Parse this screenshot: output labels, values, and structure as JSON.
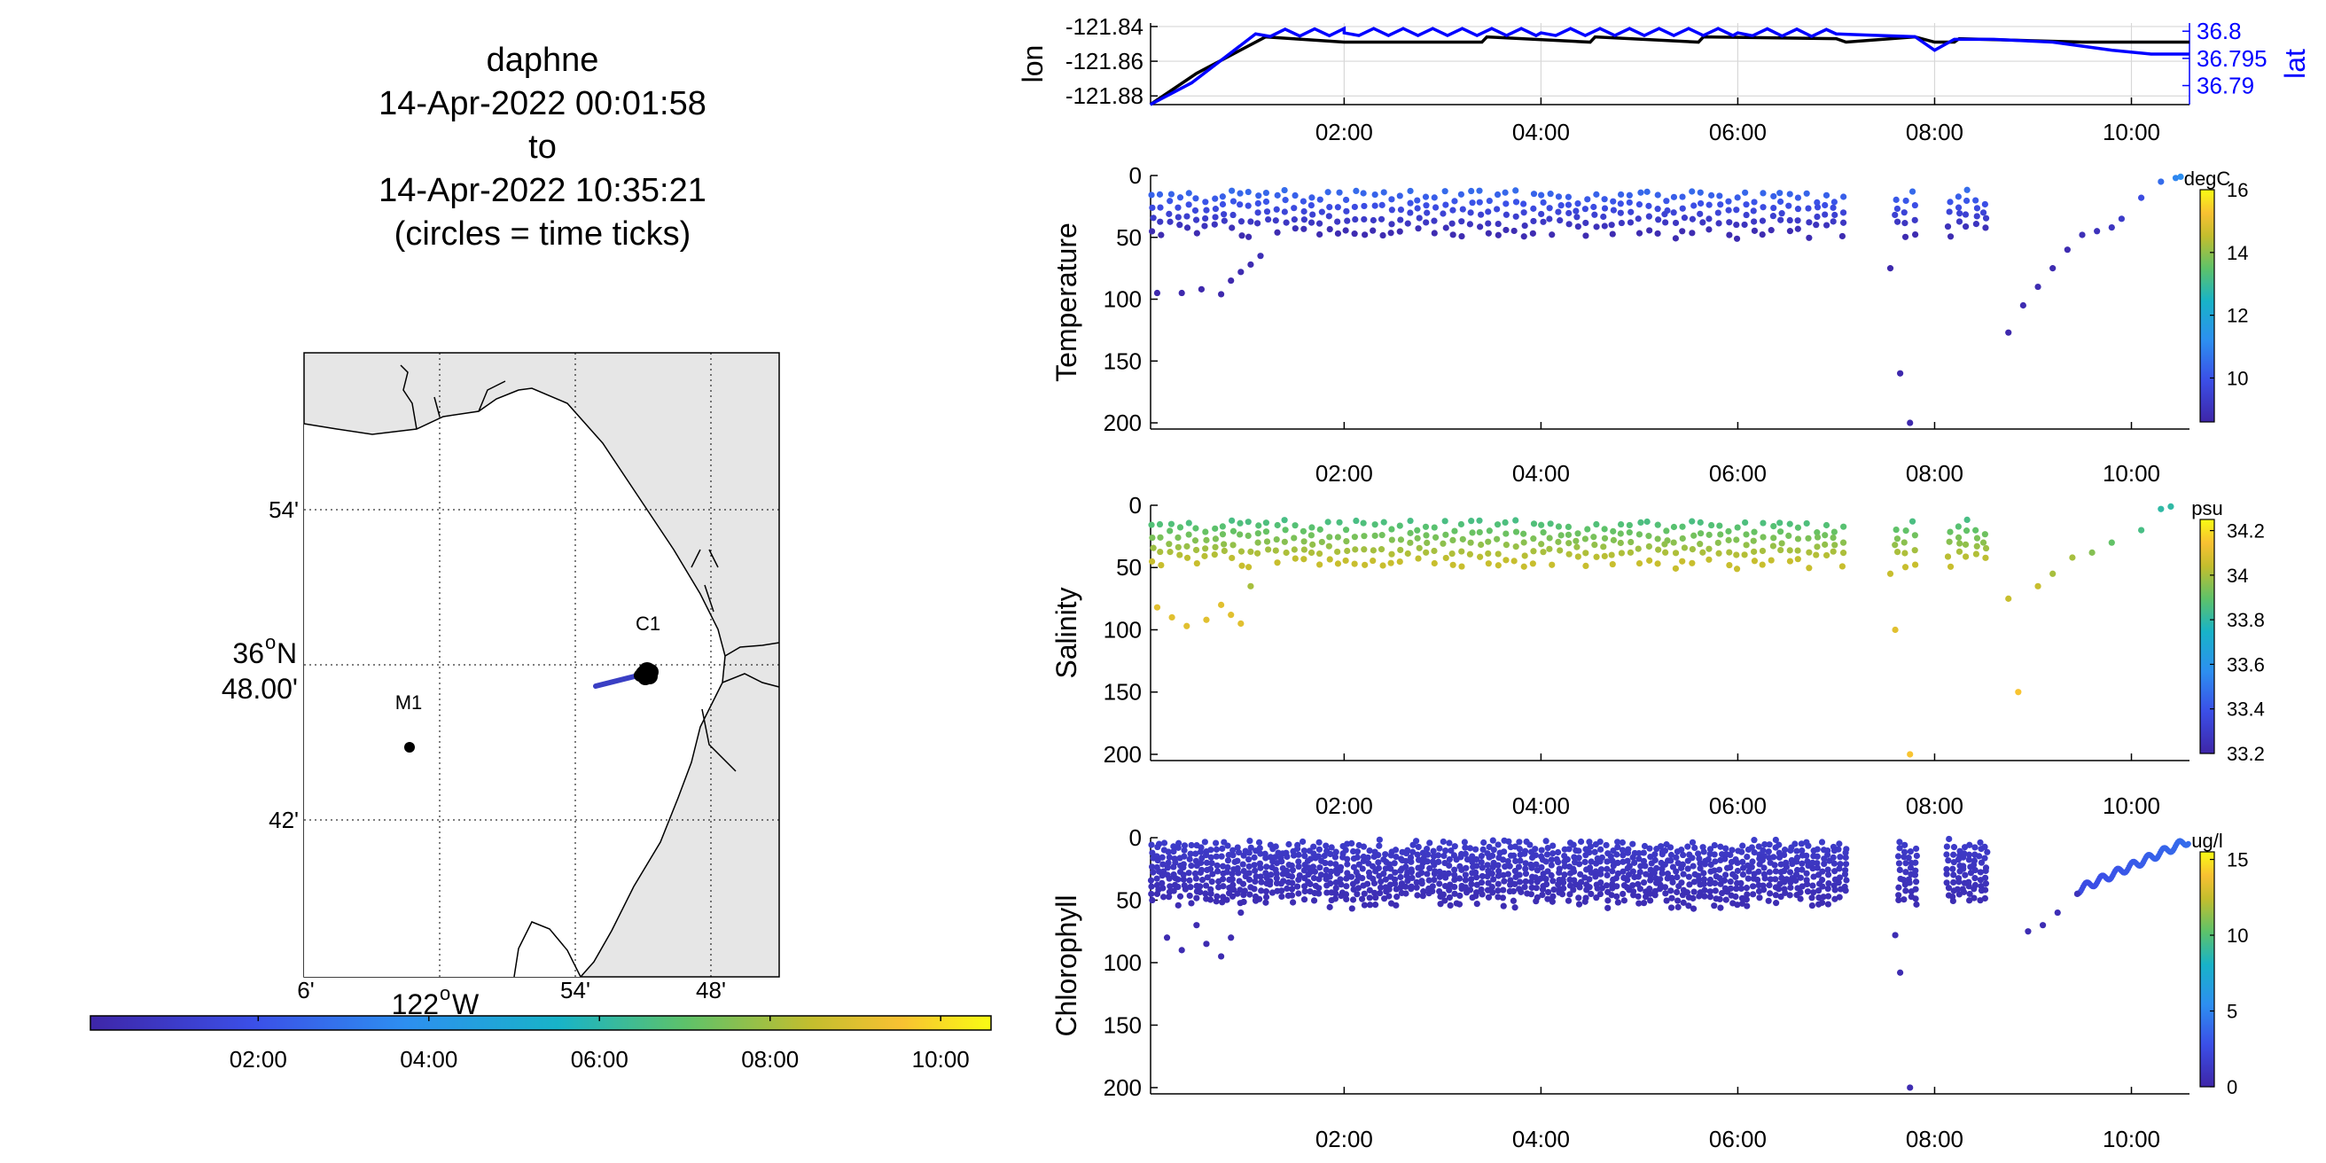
{
  "title": {
    "lines": [
      "daphne",
      "14-Apr-2022 00:01:58",
      "to",
      "14-Apr-2022 10:35:21",
      "(circles = time ticks)"
    ]
  },
  "map": {
    "lat_tick_labels": [
      "54'",
      "36°N 48.00'",
      "42'"
    ],
    "lat_main_deg": "36",
    "lat_main_suffix": "N",
    "lat_main_min": "48.00'",
    "lon_tick_labels": [
      "6'",
      "54'",
      "48'"
    ],
    "lon_main_deg": "122",
    "lon_main_suffix": "W",
    "degree_glyph": "o",
    "stations": [
      {
        "name": "M1"
      },
      {
        "name": "C1"
      }
    ],
    "colors": {
      "land": "#e6e6e6",
      "sea": "#ffffff",
      "track": "#3a3fc4",
      "marker": "#000000"
    }
  },
  "time_colorbar": {
    "tick_labels": [
      "02:00",
      "04:00",
      "06:00",
      "08:00",
      "10:00"
    ],
    "colors": [
      "#3e26a8",
      "#2d8ff0",
      "#22c0a8",
      "#b6c131",
      "#f9e418"
    ]
  },
  "chart_data": [
    {
      "type": "line",
      "name": "position",
      "x_unit": "hours since 14-Apr-2022 00:00",
      "xlim": [
        0.033,
        10.59
      ],
      "x_tick_labels": [
        "02:00",
        "04:00",
        "06:00",
        "08:00",
        "10:00"
      ],
      "x_ticks": [
        2,
        4,
        6,
        8,
        10
      ],
      "ylabel_left": "lon",
      "ylabel_right": "lat",
      "ylim_left": [
        -121.885,
        -121.838
      ],
      "y_ticks_left": [
        -121.84,
        -121.86,
        -121.88
      ],
      "y_tick_labels_left": [
        "-121.84",
        "-121.86",
        "-121.88"
      ],
      "ylim_right": [
        36.7865,
        36.8015
      ],
      "y_ticks_right": [
        36.8,
        36.795,
        36.79
      ],
      "y_tick_labels_right": [
        "36.8",
        "36.795",
        "36.79"
      ],
      "grid": true,
      "series": [
        {
          "color": "#000000",
          "axis": "left",
          "x": [
            0.03,
            0.5,
            1.2,
            2.0,
            3.4,
            3.45,
            4.5,
            4.55,
            5.6,
            5.65,
            7.0,
            7.1,
            7.8,
            8.0,
            8.2,
            8.25,
            9.5,
            10.59
          ],
          "y": [
            -121.885,
            -121.867,
            -121.846,
            -121.849,
            -121.849,
            -121.846,
            -121.849,
            -121.846,
            -121.849,
            -121.846,
            -121.847,
            -121.849,
            -121.846,
            -121.849,
            -121.849,
            -121.847,
            -121.849,
            -121.849
          ]
        },
        {
          "color": "#0000ff",
          "axis": "right",
          "x": [
            0.03,
            0.45,
            1.1,
            2.0,
            4.0,
            6.0,
            7.0,
            7.3,
            7.8,
            8.0,
            8.2,
            8.6,
            9.2,
            9.8,
            10.2,
            10.59
          ],
          "y": [
            36.7865,
            36.7905,
            36.7995,
            36.7997,
            36.7997,
            36.7997,
            36.7995,
            36.7993,
            36.799,
            36.7965,
            36.7985,
            36.7985,
            36.798,
            36.7965,
            36.7958,
            36.7958
          ]
        }
      ]
    },
    {
      "type": "scatter",
      "name": "temperature",
      "ylabel": "Temperature",
      "ylim": [
        0,
        205
      ],
      "y_reversed": true,
      "y_ticks": [
        0,
        50,
        100,
        150,
        200
      ],
      "xlim": [
        0.033,
        10.59
      ],
      "x_ticks": [
        2,
        4,
        6,
        8,
        10
      ],
      "x_tick_labels": [
        "02:00",
        "04:00",
        "06:00",
        "08:00",
        "10:00"
      ],
      "colorbar": {
        "label": "degC",
        "ticks": [
          10,
          12,
          14,
          16
        ],
        "tick_labels": [
          "10",
          "12",
          "14",
          "16"
        ],
        "range": [
          8.6,
          16
        ]
      },
      "points": [
        [
          0.1,
          95,
          8.7
        ],
        [
          0.35,
          95,
          8.7
        ],
        [
          0.55,
          92,
          8.7
        ],
        [
          0.75,
          96,
          8.7
        ],
        [
          0.85,
          85,
          8.7
        ],
        [
          0.95,
          78,
          8.8
        ],
        [
          1.05,
          72,
          8.8
        ],
        [
          1.15,
          65,
          8.9
        ],
        [
          7.55,
          75,
          8.7
        ],
        [
          7.65,
          160,
          8.7
        ],
        [
          7.75,
          200,
          8.7
        ],
        [
          8.75,
          127,
          8.7
        ],
        [
          8.9,
          105,
          8.8
        ],
        [
          9.05,
          90,
          8.8
        ],
        [
          9.2,
          75,
          8.8
        ],
        [
          9.35,
          60,
          8.8
        ],
        [
          9.5,
          48,
          8.9
        ],
        [
          9.65,
          45,
          9.0
        ],
        [
          9.8,
          42,
          9.1
        ],
        [
          9.9,
          35,
          9.3
        ],
        [
          10.1,
          18,
          9.8
        ],
        [
          10.3,
          5,
          10.5
        ],
        [
          10.45,
          2,
          11
        ],
        [
          10.5,
          1,
          11.2
        ]
      ],
      "profiles": {
        "t_start": 0.05,
        "t_end": 7.1,
        "gaps": [
          [
            7.15,
            7.6
          ],
          [
            7.85,
            8.1
          ],
          [
            8.6,
            9.45
          ]
        ],
        "top": 12,
        "bottom": 45,
        "surface_value": 10.5,
        "deep_value": 8.8
      }
    },
    {
      "type": "scatter",
      "name": "salinity",
      "ylabel": "Salinity",
      "ylim": [
        0,
        205
      ],
      "y_reversed": true,
      "y_ticks": [
        0,
        50,
        100,
        150,
        200
      ],
      "xlim": [
        0.033,
        10.59
      ],
      "x_ticks": [
        2,
        4,
        6,
        8,
        10
      ],
      "x_tick_labels": [
        "02:00",
        "04:00",
        "06:00",
        "08:00",
        "10:00"
      ],
      "colorbar": {
        "label": "psu",
        "ticks": [
          33.2,
          33.4,
          33.6,
          33.8,
          34,
          34.2
        ],
        "tick_labels": [
          "33.2",
          "33.4",
          "33.6",
          "33.8",
          "34",
          "34.2"
        ],
        "range": [
          33.2,
          34.25
        ]
      },
      "points": [
        [
          0.1,
          82,
          34.1
        ],
        [
          0.25,
          90,
          34.1
        ],
        [
          0.4,
          97,
          34.1
        ],
        [
          0.6,
          92,
          34.1
        ],
        [
          0.75,
          80,
          34.1
        ],
        [
          0.85,
          88,
          34.1
        ],
        [
          0.95,
          95,
          34.1
        ],
        [
          1.05,
          65,
          34.0
        ],
        [
          7.55,
          55,
          34.05
        ],
        [
          7.6,
          100,
          34.1
        ],
        [
          7.75,
          200,
          34.15
        ],
        [
          8.85,
          150,
          34.15
        ],
        [
          8.75,
          75,
          34.05
        ],
        [
          9.05,
          65,
          34.05
        ],
        [
          9.2,
          55,
          34.0
        ],
        [
          9.4,
          42,
          34.0
        ],
        [
          9.6,
          38,
          33.95
        ],
        [
          9.8,
          30,
          33.9
        ],
        [
          10.1,
          20,
          33.85
        ],
        [
          10.3,
          3,
          33.8
        ],
        [
          10.4,
          1,
          33.8
        ]
      ],
      "profiles": {
        "t_start": 0.05,
        "t_end": 7.1,
        "gaps": [
          [
            7.15,
            7.6
          ],
          [
            7.85,
            8.1
          ],
          [
            8.6,
            9.45
          ]
        ],
        "top": 12,
        "bottom": 45,
        "surface_value": 33.85,
        "deep_value": 34.05
      }
    },
    {
      "type": "scatter",
      "name": "chlorophyll",
      "ylabel": "Chlorophyll",
      "ylim": [
        0,
        205
      ],
      "y_reversed": true,
      "y_ticks": [
        0,
        50,
        100,
        150,
        200
      ],
      "xlim": [
        0.033,
        10.59
      ],
      "x_ticks": [
        2,
        4,
        6,
        8,
        10
      ],
      "x_tick_labels": [
        "02:00",
        "04:00",
        "06:00",
        "08:00",
        "10:00"
      ],
      "colorbar": {
        "label": "ug/l",
        "ticks": [
          0,
          5,
          10,
          15
        ],
        "tick_labels": [
          "0",
          "5",
          "10",
          "15"
        ],
        "range": [
          0,
          15.5
        ]
      },
      "points": [
        [
          0.1,
          45,
          0.5
        ],
        [
          0.2,
          80,
          0.4
        ],
        [
          0.35,
          90,
          0.4
        ],
        [
          0.5,
          70,
          0.4
        ],
        [
          0.6,
          85,
          0.4
        ],
        [
          0.75,
          95,
          0.4
        ],
        [
          0.85,
          80,
          0.4
        ],
        [
          0.95,
          60,
          0.5
        ],
        [
          1.1,
          50,
          0.5
        ],
        [
          7.6,
          78,
          0.5
        ],
        [
          7.65,
          108,
          0.4
        ],
        [
          7.75,
          200,
          0.4
        ],
        [
          8.95,
          75,
          0.5
        ],
        [
          9.1,
          70,
          0.5
        ],
        [
          9.25,
          60,
          0.6
        ],
        [
          9.45,
          45,
          0.8
        ]
      ],
      "profiles": {
        "t_start": 0.05,
        "t_end": 7.1,
        "gaps": [
          [
            7.15,
            7.6
          ],
          [
            7.85,
            8.1
          ],
          [
            8.6,
            9.45
          ]
        ],
        "top": 2,
        "bottom": 50,
        "surface_value": 1.5,
        "deep_value": 0.5,
        "dense": true
      },
      "tail": {
        "t_start": 9.45,
        "t_end": 10.59,
        "depth_start": 42,
        "depth_end": 2,
        "value": 2.5
      }
    }
  ]
}
